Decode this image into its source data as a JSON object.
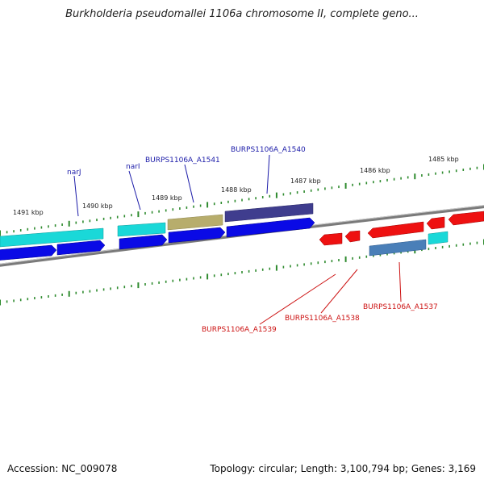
{
  "title": "Burkholderia pseudomallei 1106a chromosome II, complete geno...",
  "footer": {
    "accession": "Accession: NC_009078",
    "summary": "Topology: circular; Length: 3,100,794 bp; Genes: 3,169"
  },
  "scale_labels": [
    "1491 kbp",
    "1490 kbp",
    "1489 kbp",
    "1488 kbp",
    "1487 kbp",
    "1486 kbp",
    "1485 kbp"
  ],
  "gene_labels_top": [
    "narJ",
    "narI",
    "BURPS1106A_A1541",
    "BURPS1106A_A1540"
  ],
  "gene_labels_bottom": [
    "BURPS1106A_A1539",
    "BURPS1106A_A1538",
    "BURPS1106A_A1537"
  ],
  "colors": {
    "scale_tick": "#2e8b2e",
    "backbone": "#808080",
    "cds_forward": "#0a0ae6",
    "cds_reverse": "#ee1111",
    "gene_cyan": "#1ad8d8",
    "gene_olive": "#b7ad6c",
    "gene_purple": "#3f3d8e",
    "gene_steel": "#4a7fb8",
    "label_top": "#1a1aa8",
    "label_bottom": "#cc1111"
  }
}
